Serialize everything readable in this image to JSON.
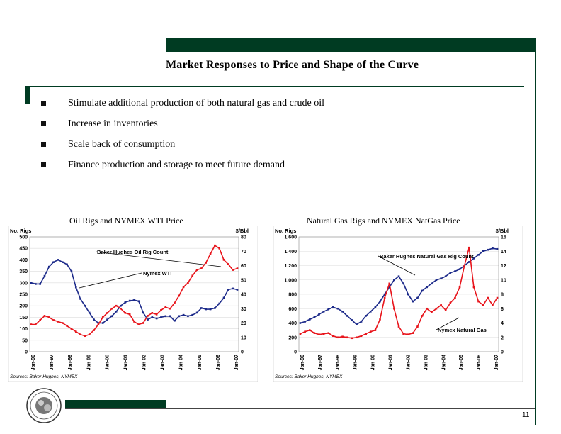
{
  "slide": {
    "title": "Market Responses to Price and Shape of the Curve",
    "bullets": [
      "Stimulate additional production of both natural gas and crude oil",
      "Increase in inventories",
      "Scale back of consumption",
      "Finance production and storage to meet future demand"
    ],
    "page_number": "11"
  },
  "colors": {
    "accent_green": "#003b22",
    "series_blue": "#1c2a8a",
    "series_red": "#e8141b"
  },
  "chart_data": [
    {
      "type": "line",
      "caption": "Oil Rigs and NYMEX WTI Price",
      "left_unit": "No. Rigs",
      "right_unit": "$/Bbl",
      "left_ticks": [
        "500",
        "450",
        "400",
        "350",
        "300",
        "250",
        "200",
        "150",
        "100",
        "50",
        "0"
      ],
      "right_ticks": [
        "80",
        "70",
        "60",
        "50",
        "40",
        "30",
        "20",
        "10",
        "0"
      ],
      "ylim_left": [
        0,
        500
      ],
      "ylim_right": [
        0,
        80
      ],
      "x_ticks": [
        "Jan-96",
        "Jan-97",
        "Jan-98",
        "Jan-99",
        "Jan-00",
        "Jan-01",
        "Jan-02",
        "Jan-03",
        "Jan-04",
        "Jan-05",
        "Jan-06",
        "Jan-07"
      ],
      "source": "Sources: Baker Hughes, NYMEX",
      "annotations": [
        "Baker Hughes Oil Rig Count",
        "Nymex WTI"
      ],
      "series": [
        {
          "name": "Baker Hughes Oil Rig Count",
          "axis": "left",
          "color": "#1c2a8a",
          "values": [
            300,
            295,
            295,
            330,
            370,
            390,
            400,
            390,
            380,
            350,
            280,
            230,
            200,
            170,
            140,
            125,
            125,
            140,
            155,
            175,
            200,
            215,
            222,
            225,
            220,
            170,
            140,
            150,
            145,
            150,
            155,
            155,
            135,
            155,
            160,
            155,
            160,
            170,
            190,
            185,
            185,
            190,
            210,
            235,
            270,
            275,
            270
          ]
        },
        {
          "name": "Nymex WTI",
          "axis": "right",
          "color": "#e8141b",
          "values": [
            19,
            19,
            22,
            25,
            24,
            22,
            21,
            20,
            18,
            16,
            14,
            12,
            11,
            12,
            15,
            19,
            24,
            27,
            30,
            32,
            30,
            27,
            26,
            21,
            19,
            20,
            25,
            27,
            26,
            29,
            31,
            30,
            34,
            39,
            45,
            48,
            53,
            57,
            58,
            62,
            68,
            74,
            72,
            64,
            61,
            57,
            58
          ]
        }
      ]
    },
    {
      "type": "line",
      "caption": "Natural Gas Rigs and NYMEX NatGas Price",
      "left_unit": "No. Rigs",
      "right_unit": "$/Bbl",
      "left_ticks": [
        "1,600",
        "1,400",
        "1,200",
        "1,000",
        "800",
        "600",
        "400",
        "200",
        "0"
      ],
      "right_ticks": [
        "16",
        "14",
        "12",
        "10",
        "8",
        "6",
        "4",
        "2",
        "0"
      ],
      "ylim_left": [
        0,
        1600
      ],
      "ylim_right": [
        0,
        16
      ],
      "x_ticks": [
        "Jan-96",
        "Jan-97",
        "Jan-98",
        "Jan-99",
        "Jan-00",
        "Jan-01",
        "Jan-02",
        "Jan-03",
        "Jan-04",
        "Jan-05",
        "Jan-06",
        "Jan-07"
      ],
      "source": "Sources: Baker Hughes, NYMEX",
      "annotations": [
        "Baker Hughes Natural Gas Rig Count",
        "Nymex Natural Gas"
      ],
      "series": [
        {
          "name": "Baker Hughes Natural Gas Rig Count",
          "axis": "left",
          "color": "#1c2a8a",
          "values": [
            400,
            420,
            450,
            480,
            520,
            560,
            590,
            620,
            600,
            560,
            500,
            440,
            380,
            420,
            500,
            560,
            620,
            700,
            800,
            900,
            1000,
            1050,
            950,
            800,
            700,
            750,
            850,
            900,
            950,
            1000,
            1020,
            1050,
            1100,
            1120,
            1150,
            1200,
            1250,
            1300,
            1350,
            1400,
            1420,
            1440,
            1430
          ]
        },
        {
          "name": "Nymex Natural Gas",
          "axis": "right",
          "color": "#e8141b",
          "values": [
            2.5,
            2.8,
            3.0,
            2.6,
            2.4,
            2.5,
            2.6,
            2.2,
            2.0,
            2.1,
            2.0,
            1.9,
            2.0,
            2.2,
            2.5,
            2.8,
            3.0,
            4.5,
            7.5,
            9.5,
            6.0,
            3.5,
            2.5,
            2.4,
            2.6,
            3.5,
            5.0,
            6.0,
            5.5,
            6.0,
            6.5,
            5.8,
            6.8,
            7.5,
            9.0,
            12.0,
            14.5,
            9.0,
            7.0,
            6.5,
            7.5,
            6.5,
            7.5
          ]
        }
      ]
    }
  ]
}
